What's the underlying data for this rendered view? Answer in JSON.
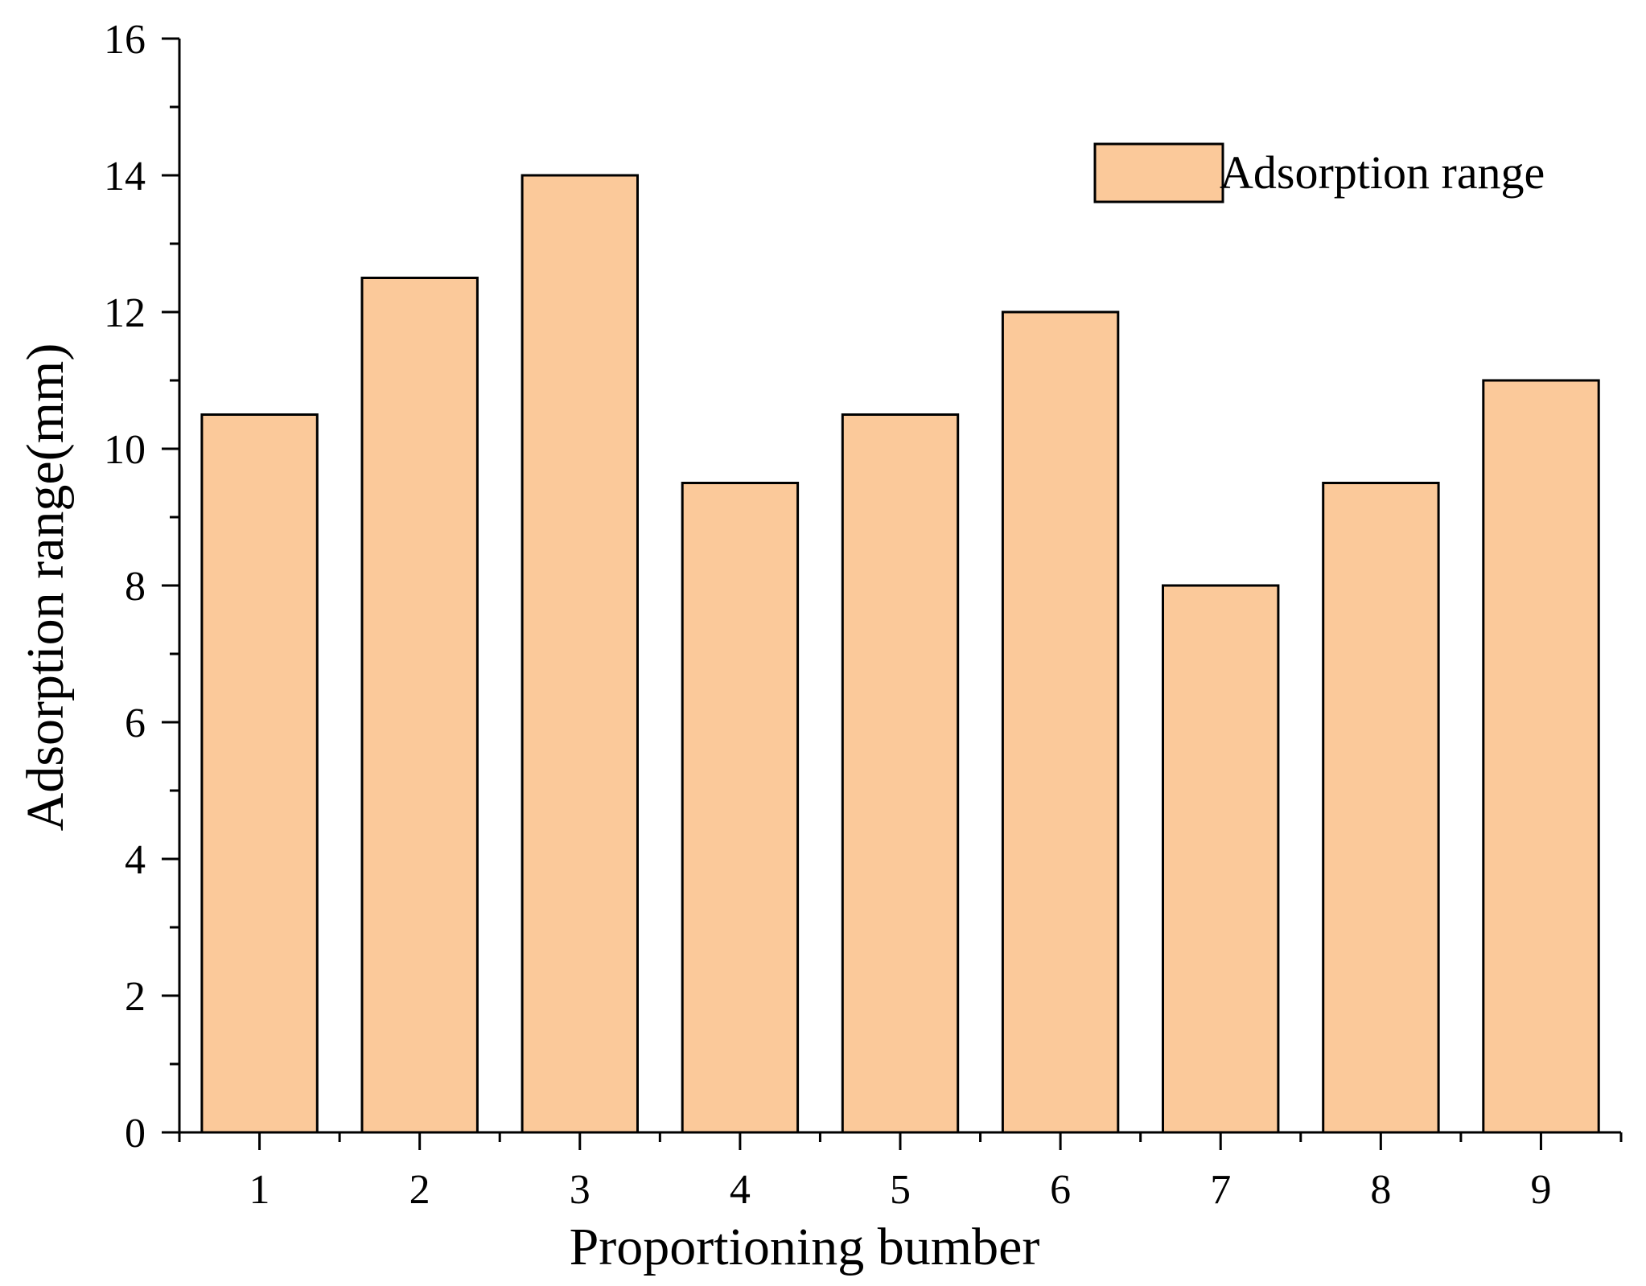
{
  "chart_data": {
    "type": "bar",
    "categories": [
      "1",
      "2",
      "3",
      "4",
      "5",
      "6",
      "7",
      "8",
      "9"
    ],
    "series": [
      {
        "name": "Adsorption range",
        "values": [
          10.5,
          12.5,
          14.0,
          9.5,
          10.5,
          12.0,
          8.0,
          9.5,
          11.0
        ]
      }
    ],
    "title": "",
    "xlabel": "Proportioning bumber",
    "ylabel": "Adsorption range(mm)",
    "ylim": [
      0,
      16
    ],
    "yticks": [
      "0",
      "2",
      "4",
      "6",
      "8",
      "10",
      "12",
      "14",
      "16"
    ],
    "grid": false,
    "legend_position": "top-right",
    "bar_color": "#FBC99A",
    "edge_color": "#000000"
  }
}
